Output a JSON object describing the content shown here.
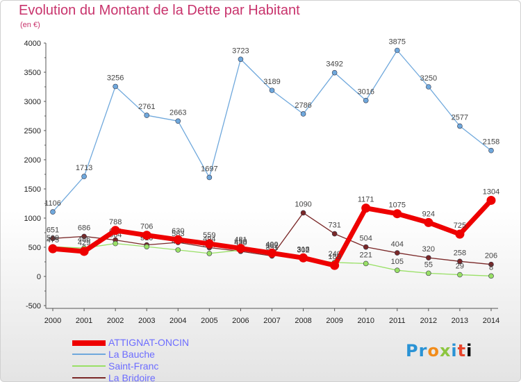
{
  "header": {
    "title": "Evolution du Montant de la Dette par Habitant",
    "unit": "(en €)"
  },
  "logo": {
    "text": "Proxiti",
    "colors": [
      "#2a93d5",
      "#f28c1a",
      "#8cc63f",
      "#e8452c"
    ]
  },
  "chart_data": {
    "type": "line",
    "title": "Evolution du Montant de la Dette par Habitant",
    "ylabel": "(en €)",
    "x": [
      2000,
      2001,
      2002,
      2003,
      2004,
      2005,
      2006,
      2007,
      2008,
      2009,
      2010,
      2011,
      2012,
      2013,
      2014
    ],
    "ylim": [
      -500,
      4000
    ],
    "yticks": [
      -500,
      0,
      500,
      1000,
      1500,
      2000,
      2500,
      3000,
      3500,
      4000
    ],
    "grid": false,
    "legend_position": "bottom-left",
    "series": [
      {
        "name": "ATTIGNAT-ONCIN",
        "color": "#ee0000",
        "values": [
          475,
          429,
          788,
          706,
          630,
          559,
          481,
          400,
          318,
          189,
          1171,
          1075,
          924,
          725,
          1304
        ]
      },
      {
        "name": "La Bauche",
        "color": "#6fa8dc",
        "values": [
          1106,
          1713,
          3256,
          2761,
          2663,
          1697,
          3723,
          3189,
          2786,
          3492,
          3016,
          3875,
          3250,
          2577,
          2158
        ]
      },
      {
        "name": "Saint-Franc",
        "color": "#99e066",
        "values": [
          509,
          486,
          564,
          510,
          454,
          394,
          450,
          382,
          302,
          240,
          221,
          105,
          55,
          29,
          8
        ]
      },
      {
        "name": "La Bridoire",
        "color": "#7a2828",
        "values": [
          651,
          686,
          624,
          540,
          583,
          494,
          430,
          351,
          1090,
          731,
          504,
          404,
          320,
          258,
          206
        ]
      }
    ]
  }
}
